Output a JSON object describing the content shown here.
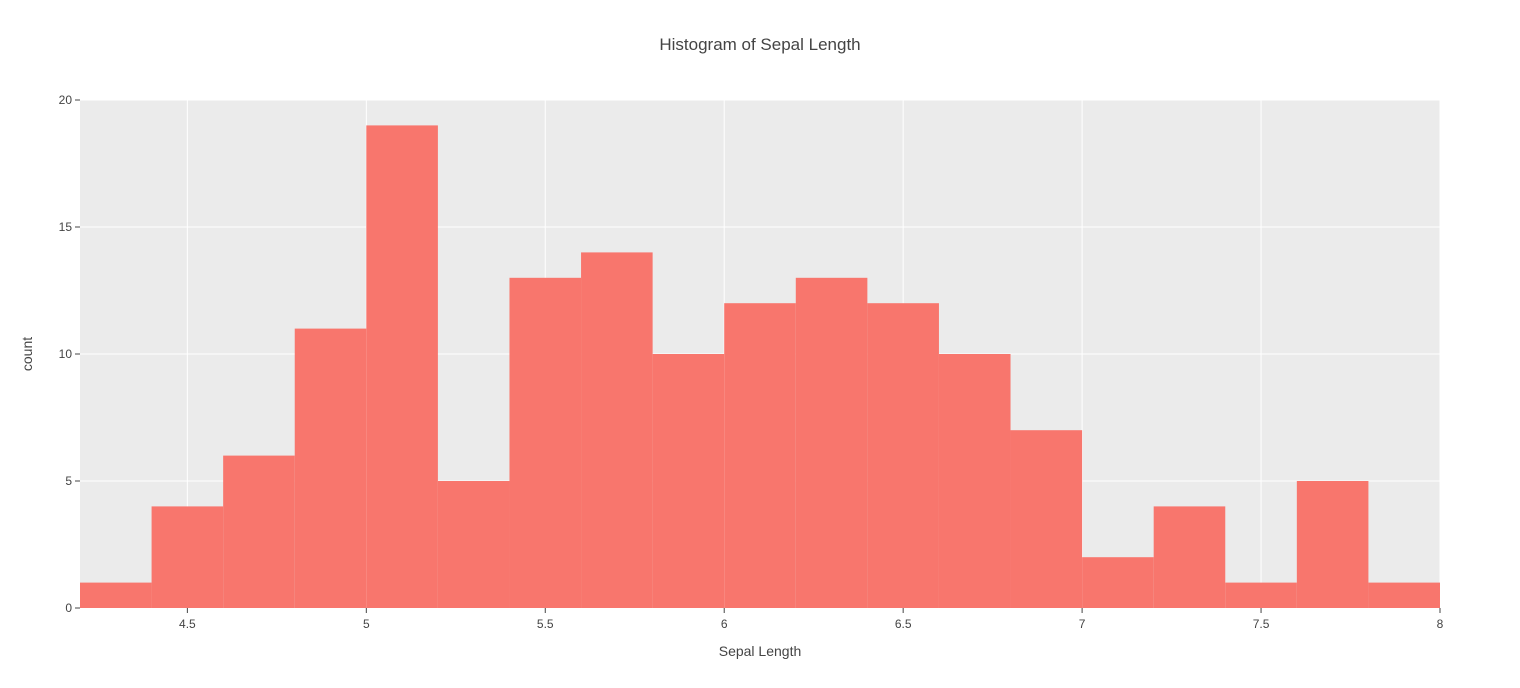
{
  "chart_data": {
    "type": "bar",
    "subtype": "histogram",
    "title": "Histogram of Sepal Length",
    "xlabel": "Sepal Length",
    "ylabel": "count",
    "xlim": [
      4.2,
      8.0
    ],
    "ylim": [
      0,
      20
    ],
    "bin_width": 0.2,
    "bins": [
      {
        "start": 4.2,
        "end": 4.4,
        "count": 1
      },
      {
        "start": 4.4,
        "end": 4.6,
        "count": 4
      },
      {
        "start": 4.6,
        "end": 4.8,
        "count": 6
      },
      {
        "start": 4.8,
        "end": 5.0,
        "count": 11
      },
      {
        "start": 5.0,
        "end": 5.2,
        "count": 19
      },
      {
        "start": 5.2,
        "end": 5.4,
        "count": 5
      },
      {
        "start": 5.4,
        "end": 5.6,
        "count": 13
      },
      {
        "start": 5.6,
        "end": 5.8,
        "count": 14
      },
      {
        "start": 5.8,
        "end": 6.0,
        "count": 10
      },
      {
        "start": 6.0,
        "end": 6.2,
        "count": 12
      },
      {
        "start": 6.2,
        "end": 6.4,
        "count": 13
      },
      {
        "start": 6.4,
        "end": 6.6,
        "count": 12
      },
      {
        "start": 6.6,
        "end": 6.8,
        "count": 10
      },
      {
        "start": 6.8,
        "end": 7.0,
        "count": 7
      },
      {
        "start": 7.0,
        "end": 7.2,
        "count": 2
      },
      {
        "start": 7.2,
        "end": 7.4,
        "count": 4
      },
      {
        "start": 7.4,
        "end": 7.6,
        "count": 1
      },
      {
        "start": 7.6,
        "end": 7.8,
        "count": 5
      },
      {
        "start": 7.8,
        "end": 8.0,
        "count": 1
      }
    ],
    "x_ticks": [
      {
        "value": 4.5,
        "label": "4.5"
      },
      {
        "value": 5.0,
        "label": "5"
      },
      {
        "value": 5.5,
        "label": "5.5"
      },
      {
        "value": 6.0,
        "label": "6"
      },
      {
        "value": 6.5,
        "label": "6.5"
      },
      {
        "value": 7.0,
        "label": "7"
      },
      {
        "value": 7.5,
        "label": "7.5"
      },
      {
        "value": 8.0,
        "label": "8"
      }
    ],
    "y_ticks": [
      {
        "value": 0,
        "label": "0"
      },
      {
        "value": 5,
        "label": "5"
      },
      {
        "value": 10,
        "label": "10"
      },
      {
        "value": 15,
        "label": "15"
      },
      {
        "value": 20,
        "label": "20"
      }
    ],
    "grid": true,
    "legend": "none",
    "colors": {
      "bar": "#f8766d",
      "plot_background": "#ebebeb",
      "gridline": "#ffffff",
      "text": "#444444"
    }
  }
}
